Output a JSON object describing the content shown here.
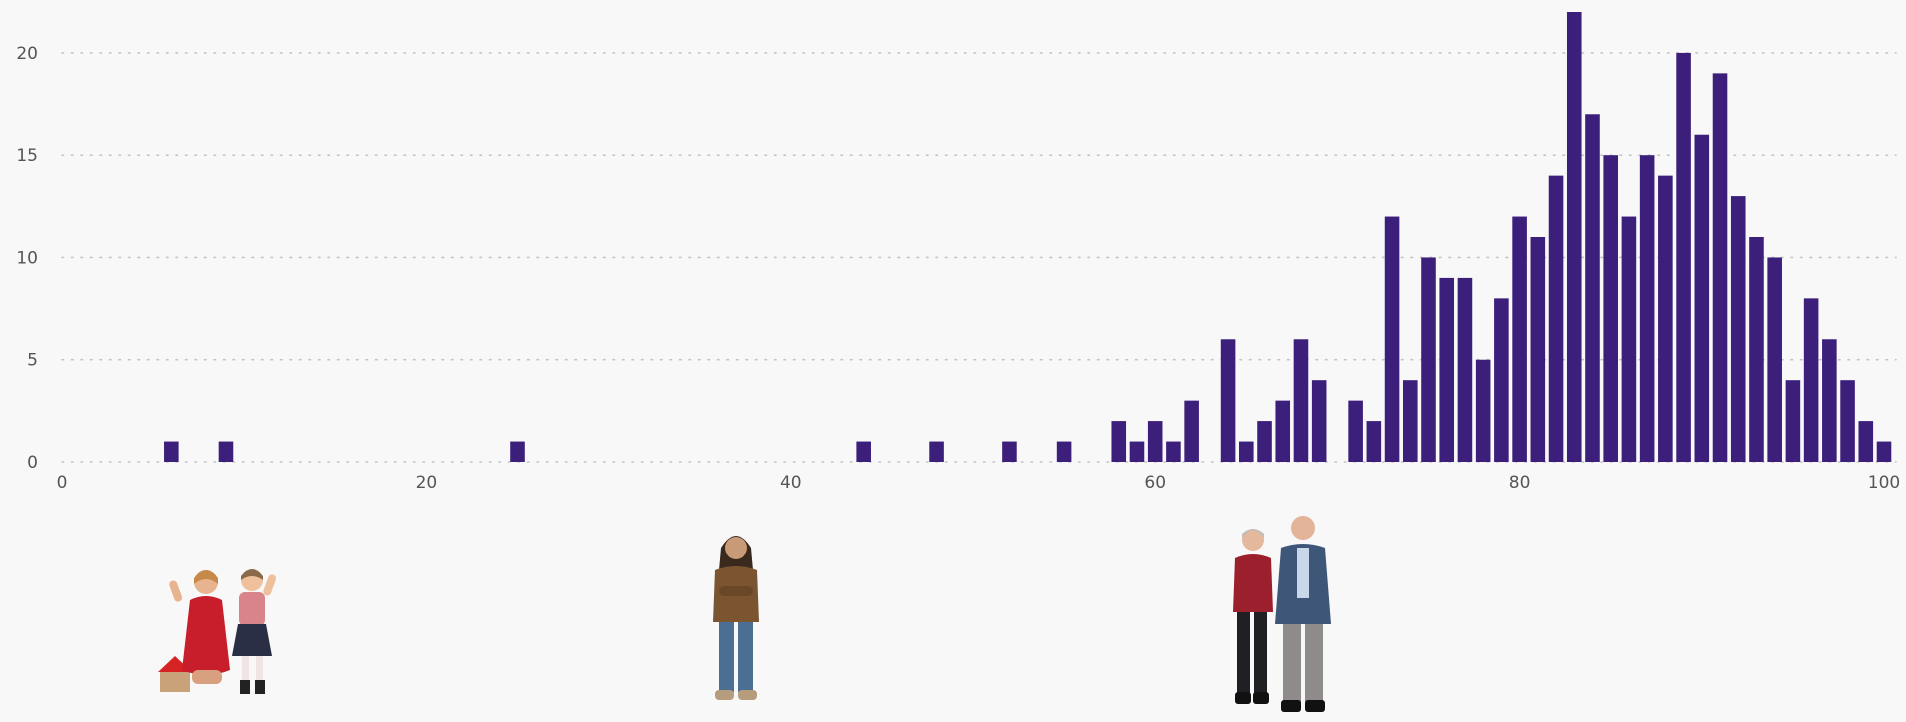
{
  "chart_data": {
    "type": "bar",
    "title": "",
    "xlabel": "",
    "ylabel": "",
    "xlim": [
      0,
      100
    ],
    "ylim": [
      0,
      22
    ],
    "x_ticks": [
      0,
      20,
      40,
      60,
      80,
      100
    ],
    "y_ticks": [
      0,
      5,
      10,
      15,
      20
    ],
    "grid": "horizontal dotted",
    "bar_color": "#3b1f7a",
    "grid_color": "#c4c4c4",
    "x": [
      6,
      9,
      25,
      44,
      48,
      52,
      55,
      58,
      59,
      60,
      61,
      62,
      64,
      65,
      66,
      67,
      68,
      69,
      71,
      72,
      73,
      74,
      75,
      76,
      77,
      78,
      79,
      80,
      81,
      82,
      83,
      84,
      85,
      86,
      87,
      88,
      89,
      90,
      91,
      92,
      93,
      94,
      95,
      96,
      97,
      98,
      99,
      100
    ],
    "values": [
      1,
      1,
      1,
      1,
      1,
      1,
      1,
      2,
      1,
      2,
      1,
      3,
      6,
      1,
      2,
      3,
      6,
      4,
      3,
      2,
      12,
      4,
      10,
      9,
      9,
      5,
      8,
      12,
      11,
      14,
      22,
      17,
      15,
      12,
      15,
      14,
      20,
      16,
      19,
      13,
      11,
      10,
      4,
      8,
      6,
      4,
      2,
      1
    ]
  },
  "illustrations": [
    {
      "name": "children-group",
      "at_x": 9
    },
    {
      "name": "young-man",
      "at_x": 37
    },
    {
      "name": "elderly-couple",
      "at_x": 67
    }
  ]
}
